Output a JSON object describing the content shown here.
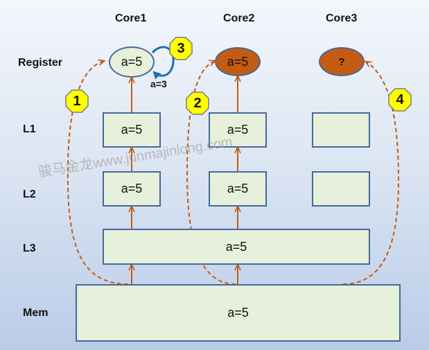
{
  "columns": {
    "core1": "Core1",
    "core2": "Core2",
    "core3": "Core3"
  },
  "rows": {
    "register": "Register",
    "l1": "L1",
    "l2": "L2",
    "l3": "L3",
    "mem": "Mem"
  },
  "cells": {
    "reg_core1": "a=5",
    "reg_core2": "a=5",
    "reg_core3": "?",
    "l1_core1": "a=5",
    "l1_core2": "a=5",
    "l1_core3": "",
    "l2_core1": "a=5",
    "l2_core2": "a=5",
    "l2_core3": "",
    "l3_shared": "a=5",
    "mem_shared": "a=5"
  },
  "loop_label": "a=3",
  "badges": {
    "b1": "1",
    "b2": "2",
    "b3": "3",
    "b4": "4"
  },
  "watermark": "骏马金龙www.junmajinlong.com",
  "colors": {
    "box_fill": "#e6f0da",
    "box_border": "#44699a",
    "register_active": "#c55a11",
    "arrow": "#c55a11",
    "loop_arrow": "#1f6fb4",
    "badge_fill": "#ffff00",
    "badge_border": "#7a7a7a"
  }
}
